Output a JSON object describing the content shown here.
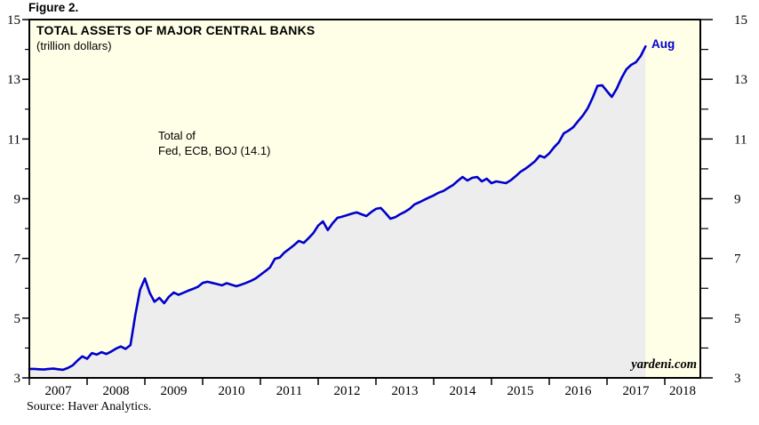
{
  "figure_label": "Figure 2.",
  "source": "Source: Haver Analytics.",
  "watermark": "yardeni.com",
  "colors": {
    "line": "#0000CC",
    "area_fill": "#EDEDED",
    "plot_background": "#FFFFE8",
    "axis": "#000000",
    "end_label_blue": "#0000CC"
  },
  "chart_data": {
    "type": "area",
    "title": "TOTAL ASSETS OF MAJOR CENTRAL BANKS",
    "subtitle": "(trillion dollars)",
    "annotation": [
      "Total of",
      "Fed, ECB, BOJ (14.1)"
    ],
    "end_label": "Aug",
    "latest_value": 14.1,
    "ylim": [
      3,
      15
    ],
    "y_major_ticks": [
      3,
      5,
      7,
      9,
      11,
      13,
      15
    ],
    "y_minor_ticks": [
      4,
      6,
      8,
      10,
      12,
      14
    ],
    "x_year_labels": [
      "2007",
      "2008",
      "2009",
      "2010",
      "2011",
      "2012",
      "2013",
      "2014",
      "2015",
      "2016",
      "2017",
      "2018"
    ],
    "legend_position": "none",
    "grid": false,
    "series": [
      {
        "name": "Total of Fed, ECB, BOJ",
        "frequency": "monthly",
        "start": "2007-01",
        "end": "2017-08",
        "values": [
          3.3,
          3.29,
          3.28,
          3.3,
          3.31,
          3.29,
          3.27,
          3.33,
          3.42,
          3.58,
          3.72,
          3.64,
          3.83,
          3.78,
          3.86,
          3.8,
          3.88,
          3.98,
          4.05,
          3.97,
          4.1,
          5.1,
          5.95,
          6.33,
          5.85,
          5.55,
          5.68,
          5.5,
          5.72,
          5.86,
          5.78,
          5.85,
          5.92,
          5.98,
          6.05,
          6.18,
          6.22,
          6.18,
          6.14,
          6.1,
          6.17,
          6.12,
          6.07,
          6.12,
          6.18,
          6.25,
          6.33,
          6.45,
          6.57,
          6.7,
          6.99,
          7.03,
          7.2,
          7.32,
          7.45,
          7.59,
          7.52,
          7.68,
          7.85,
          8.1,
          8.24,
          7.95,
          8.18,
          8.36,
          8.4,
          8.45,
          8.5,
          8.54,
          8.48,
          8.42,
          8.55,
          8.66,
          8.69,
          8.52,
          8.33,
          8.38,
          8.48,
          8.56,
          8.66,
          8.81,
          8.88,
          8.96,
          9.04,
          9.11,
          9.2,
          9.26,
          9.36,
          9.46,
          9.6,
          9.73,
          9.61,
          9.7,
          9.73,
          9.58,
          9.67,
          9.52,
          9.58,
          9.55,
          9.52,
          9.62,
          9.75,
          9.9,
          10.0,
          10.12,
          10.25,
          10.44,
          10.38,
          10.52,
          10.72,
          10.89,
          11.19,
          11.28,
          11.4,
          11.6,
          11.79,
          12.03,
          12.38,
          12.78,
          12.8,
          12.6,
          12.41,
          12.68,
          13.04,
          13.33,
          13.48,
          13.57,
          13.78,
          14.1
        ]
      }
    ]
  }
}
